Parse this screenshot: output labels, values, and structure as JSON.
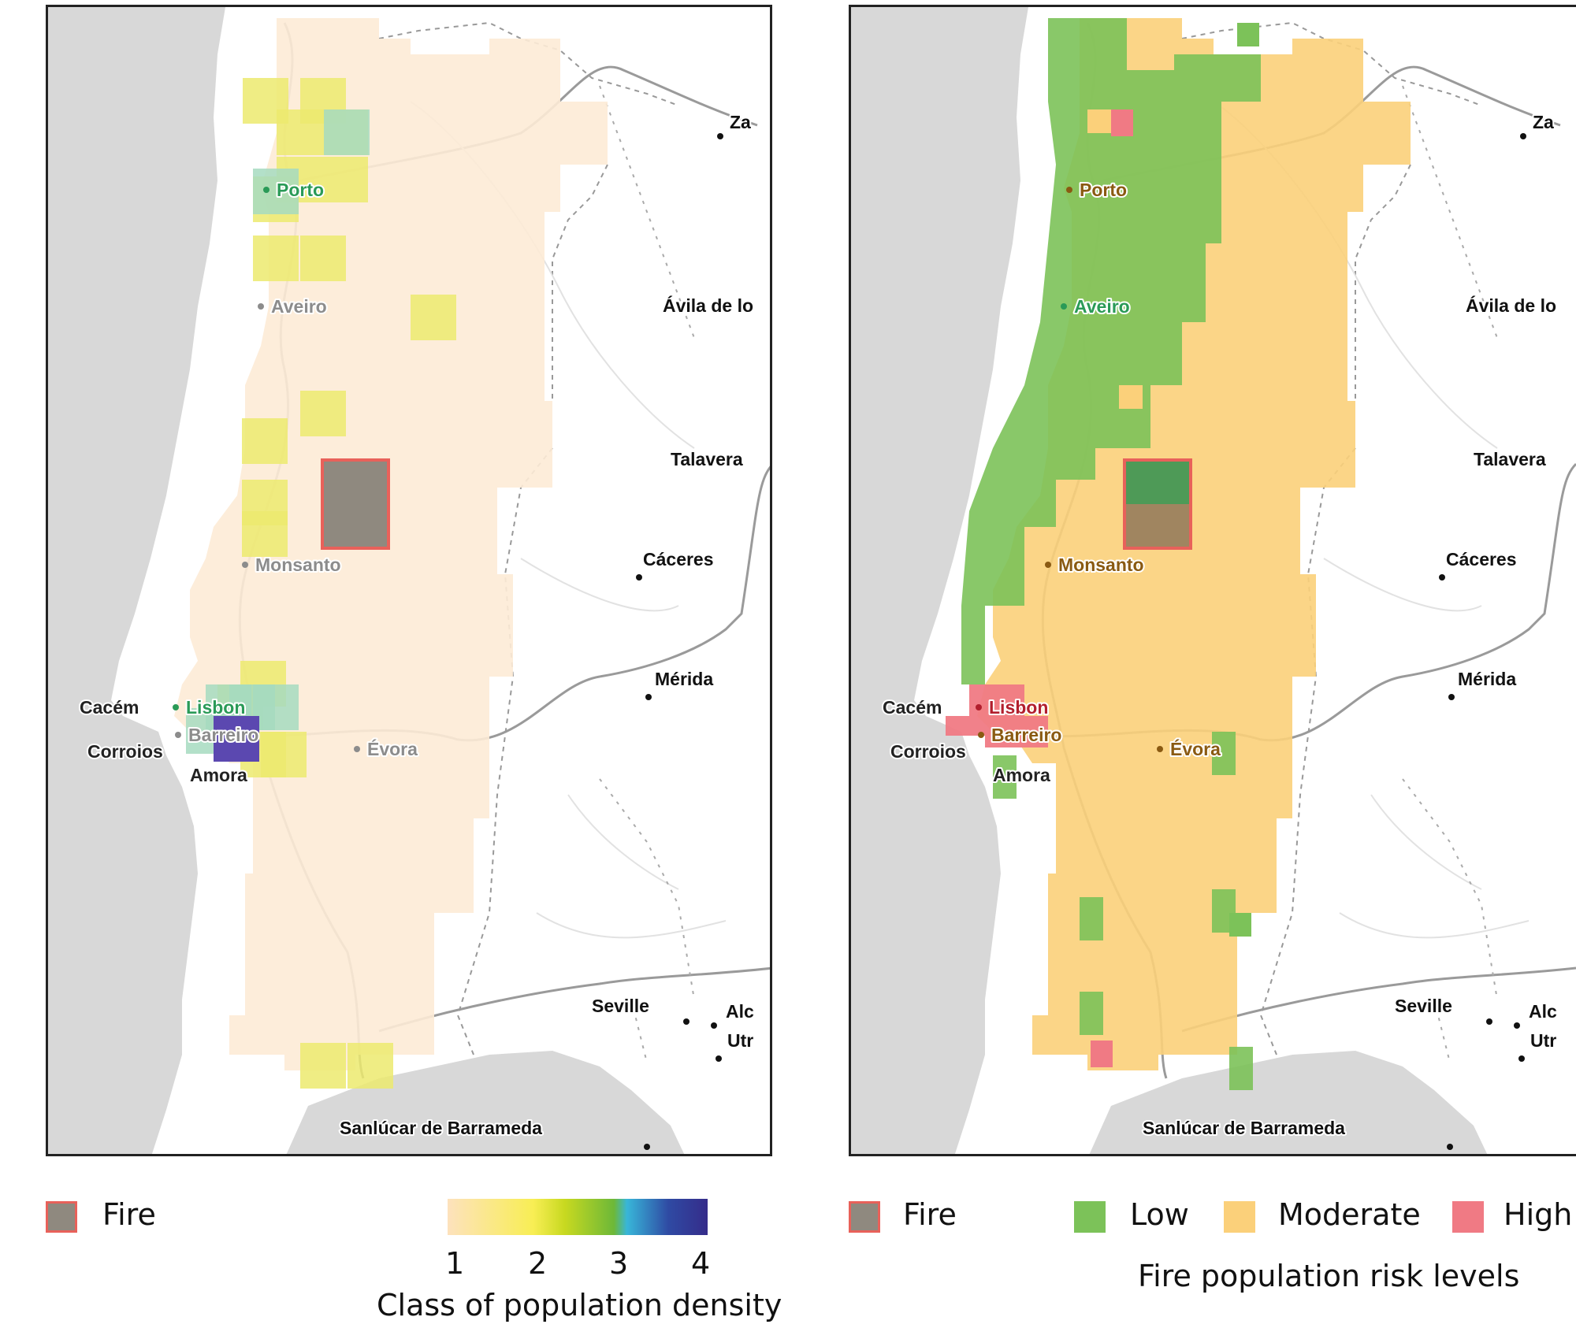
{
  "left_map": {
    "cities": [
      {
        "name": "Porto",
        "color": "#2a9a57"
      },
      {
        "name": "Aveiro",
        "color": "#8c8c8c"
      },
      {
        "name": "Monsanto",
        "color": "#8c8c8c"
      },
      {
        "name": "Lisbon",
        "color": "#2a9a57"
      },
      {
        "name": "Cacém",
        "color": "#222222"
      },
      {
        "name": "Barreiro",
        "color": "#8c8c8c"
      },
      {
        "name": "Corroios",
        "color": "#222222"
      },
      {
        "name": "Amora",
        "color": "#222222"
      },
      {
        "name": "Évora",
        "color": "#8c8c8c"
      }
    ],
    "regional": [
      "Za",
      "Ávila de lo",
      "Talavera",
      "Cáceres",
      "Mérida",
      "Seville",
      "Alc",
      "Utr",
      "Sanlúcar de Barrameda"
    ]
  },
  "right_map": {
    "cities": [
      {
        "name": "Porto",
        "color": "#8a5a12"
      },
      {
        "name": "Aveiro",
        "color": "#2a9a57"
      },
      {
        "name": "Monsanto",
        "color": "#8a5a12"
      },
      {
        "name": "Lisbon",
        "color": "#b21f2d"
      },
      {
        "name": "Cacém",
        "color": "#222222"
      },
      {
        "name": "Barreiro",
        "color": "#8a5a12"
      },
      {
        "name": "Corroios",
        "color": "#222222"
      },
      {
        "name": "Amora",
        "color": "#222222"
      },
      {
        "name": "Évora",
        "color": "#8a5a12"
      }
    ],
    "regional": [
      "Za",
      "Ávila de lo",
      "Talavera",
      "Cáceres",
      "Mérida",
      "Seville",
      "Alc",
      "Utr",
      "Sanlúcar de Barrameda"
    ]
  },
  "legend_left": {
    "fire_label": "Fire",
    "ticks": [
      "1",
      "2",
      "3",
      "4"
    ],
    "title": "Class of population density"
  },
  "legend_right": {
    "fire_label": "Fire",
    "low_label": "Low",
    "moderate_label": "Moderate",
    "high_label": "High",
    "title": "Fire population risk levels"
  },
  "colors": {
    "fire_fill": "#8f897f",
    "fire_border": "#e8615a",
    "class1": "#fdebd6",
    "class2": "#ecea6f",
    "class3": "#a6dbc0",
    "class4": "#5b48b0",
    "low": "#7cc259",
    "moderate": "#fbd07a",
    "high": "#f07a84",
    "sea": "#d8d8d8"
  }
}
